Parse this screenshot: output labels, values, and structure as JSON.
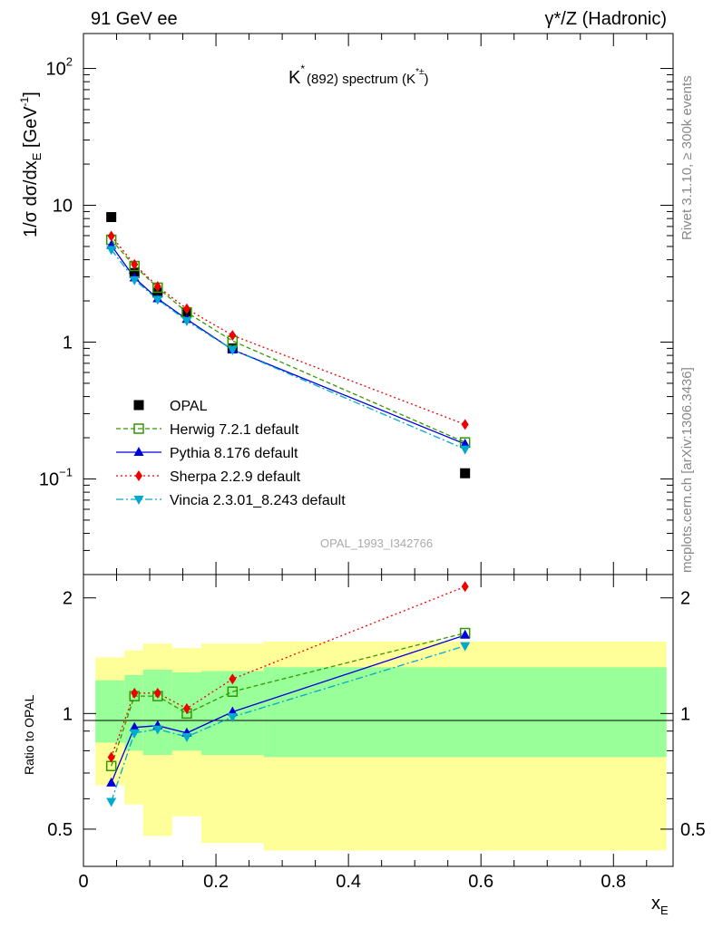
{
  "header": {
    "left": "91 GeV ee",
    "right": "γ*/Z (Hadronic)"
  },
  "side": {
    "rivet": "Rivet 3.1.10, ≥ 300k events",
    "mcplots": "mcplots.cern.ch [arXiv:1306.3436]"
  },
  "chart_data": [
    {
      "type": "scatter",
      "panel": "main",
      "title_main": "K",
      "title_star": "*",
      "title_mid": "(892) spectrum (K",
      "title_sup": "*±",
      "title_end": ")",
      "ylabel": "1/σ dσ/dx",
      "ylabel_sub": "E",
      "ylabel_unit_open": " [GeV",
      "ylabel_unit_sup": "-1",
      "ylabel_unit_close": "]",
      "yscale": "log",
      "xlim": [
        0,
        0.89
      ],
      "ylim": [
        0.02,
        180
      ],
      "yticks": [
        {
          "value": 100,
          "label": "10",
          "sup": "2"
        },
        {
          "value": 10,
          "label": "10",
          "sup": ""
        },
        {
          "value": 1,
          "label": "1",
          "sup": ""
        },
        {
          "value": 0.1,
          "label": "10",
          "sup": "−1"
        }
      ],
      "watermark": "OPAL_1993_I342766",
      "legend_position": "lower-left",
      "x": [
        0.042,
        0.077,
        0.112,
        0.156,
        0.225,
        0.576
      ],
      "series": [
        {
          "name": "OPAL",
          "role": "data",
          "color": "#000000",
          "marker": "square",
          "values": [
            8.2,
            3.2,
            2.3,
            1.65,
            0.9,
            0.11
          ]
        },
        {
          "name": "Herwig 7.2.1 default",
          "color": "#339900",
          "marker": "open-square",
          "dash": "5,3",
          "values": [
            5.6,
            3.6,
            2.5,
            1.65,
            1.02,
            0.185
          ]
        },
        {
          "name": "Pythia 8.176 default",
          "color": "#0000dd",
          "marker": "triangle-up",
          "dash": "",
          "values": [
            5.1,
            2.95,
            2.08,
            1.47,
            0.88,
            0.18
          ]
        },
        {
          "name": "Sherpa 2.2.9 default",
          "color": "#ee0000",
          "marker": "diamond",
          "dash": "2,3",
          "values": [
            5.95,
            3.7,
            2.55,
            1.75,
            1.12,
            0.25
          ]
        },
        {
          "name": "Vincia 2.3.01_8.243 default",
          "color": "#00aacc",
          "marker": "triangle-down",
          "dash": "8,3,2,3",
          "values": [
            4.75,
            2.85,
            2.05,
            1.43,
            0.88,
            0.165
          ]
        }
      ]
    },
    {
      "type": "scatter",
      "panel": "ratio",
      "ylabel": "Ratio to OPAL",
      "xlabel": "x",
      "xlabel_sub": "E",
      "xlim": [
        0,
        0.89
      ],
      "ylim": [
        0.4,
        2.3
      ],
      "yscale": "log",
      "yticks": [
        {
          "value": 2,
          "label": "2"
        },
        {
          "value": 1,
          "label": "1"
        },
        {
          "value": 0.5,
          "label": "0.5"
        }
      ],
      "xticks": [
        {
          "value": 0,
          "label": "0"
        },
        {
          "value": 0.2,
          "label": "0.2"
        },
        {
          "value": 0.4,
          "label": "0.4"
        },
        {
          "value": 0.6,
          "label": "0.6"
        },
        {
          "value": 0.8,
          "label": "0.8"
        }
      ],
      "uncertainty_bands": [
        {
          "x0": 0.018,
          "x1": 0.062,
          "green": [
            0.84,
            1.22
          ],
          "yellow": [
            0.65,
            1.4
          ]
        },
        {
          "x0": 0.062,
          "x1": 0.09,
          "green": [
            0.8,
            1.26
          ],
          "yellow": [
            0.58,
            1.46
          ]
        },
        {
          "x0": 0.09,
          "x1": 0.134,
          "green": [
            0.78,
            1.3
          ],
          "yellow": [
            0.48,
            1.52
          ]
        },
        {
          "x0": 0.134,
          "x1": 0.178,
          "green": [
            0.8,
            1.28
          ],
          "yellow": [
            0.54,
            1.48
          ]
        },
        {
          "x0": 0.178,
          "x1": 0.272,
          "green": [
            0.78,
            1.29
          ],
          "yellow": [
            0.46,
            1.52
          ]
        },
        {
          "x0": 0.272,
          "x1": 0.88,
          "green": [
            0.77,
            1.32
          ],
          "yellow": [
            0.44,
            1.54
          ]
        }
      ],
      "x": [
        0.042,
        0.077,
        0.112,
        0.156,
        0.225,
        0.576
      ],
      "series": [
        {
          "name": "Herwig 7.2.1 default",
          "color": "#339900",
          "marker": "open-square",
          "dash": "5,3",
          "values": [
            0.73,
            1.11,
            1.11,
            1.0,
            1.14,
            1.62
          ]
        },
        {
          "name": "Pythia 8.176 default",
          "color": "#0000dd",
          "marker": "triangle-up",
          "dash": "",
          "values": [
            0.66,
            0.92,
            0.93,
            0.89,
            1.01,
            1.6
          ]
        },
        {
          "name": "Sherpa 2.2.9 default",
          "color": "#ee0000",
          "marker": "diamond",
          "dash": "2,3",
          "values": [
            0.77,
            1.13,
            1.13,
            1.03,
            1.23,
            2.14
          ]
        },
        {
          "name": "Vincia 2.3.01_8.243 default",
          "color": "#00aacc",
          "marker": "triangle-down",
          "dash": "8,3,2,3",
          "values": [
            0.59,
            0.89,
            0.91,
            0.87,
            0.98,
            1.5
          ]
        }
      ]
    }
  ]
}
